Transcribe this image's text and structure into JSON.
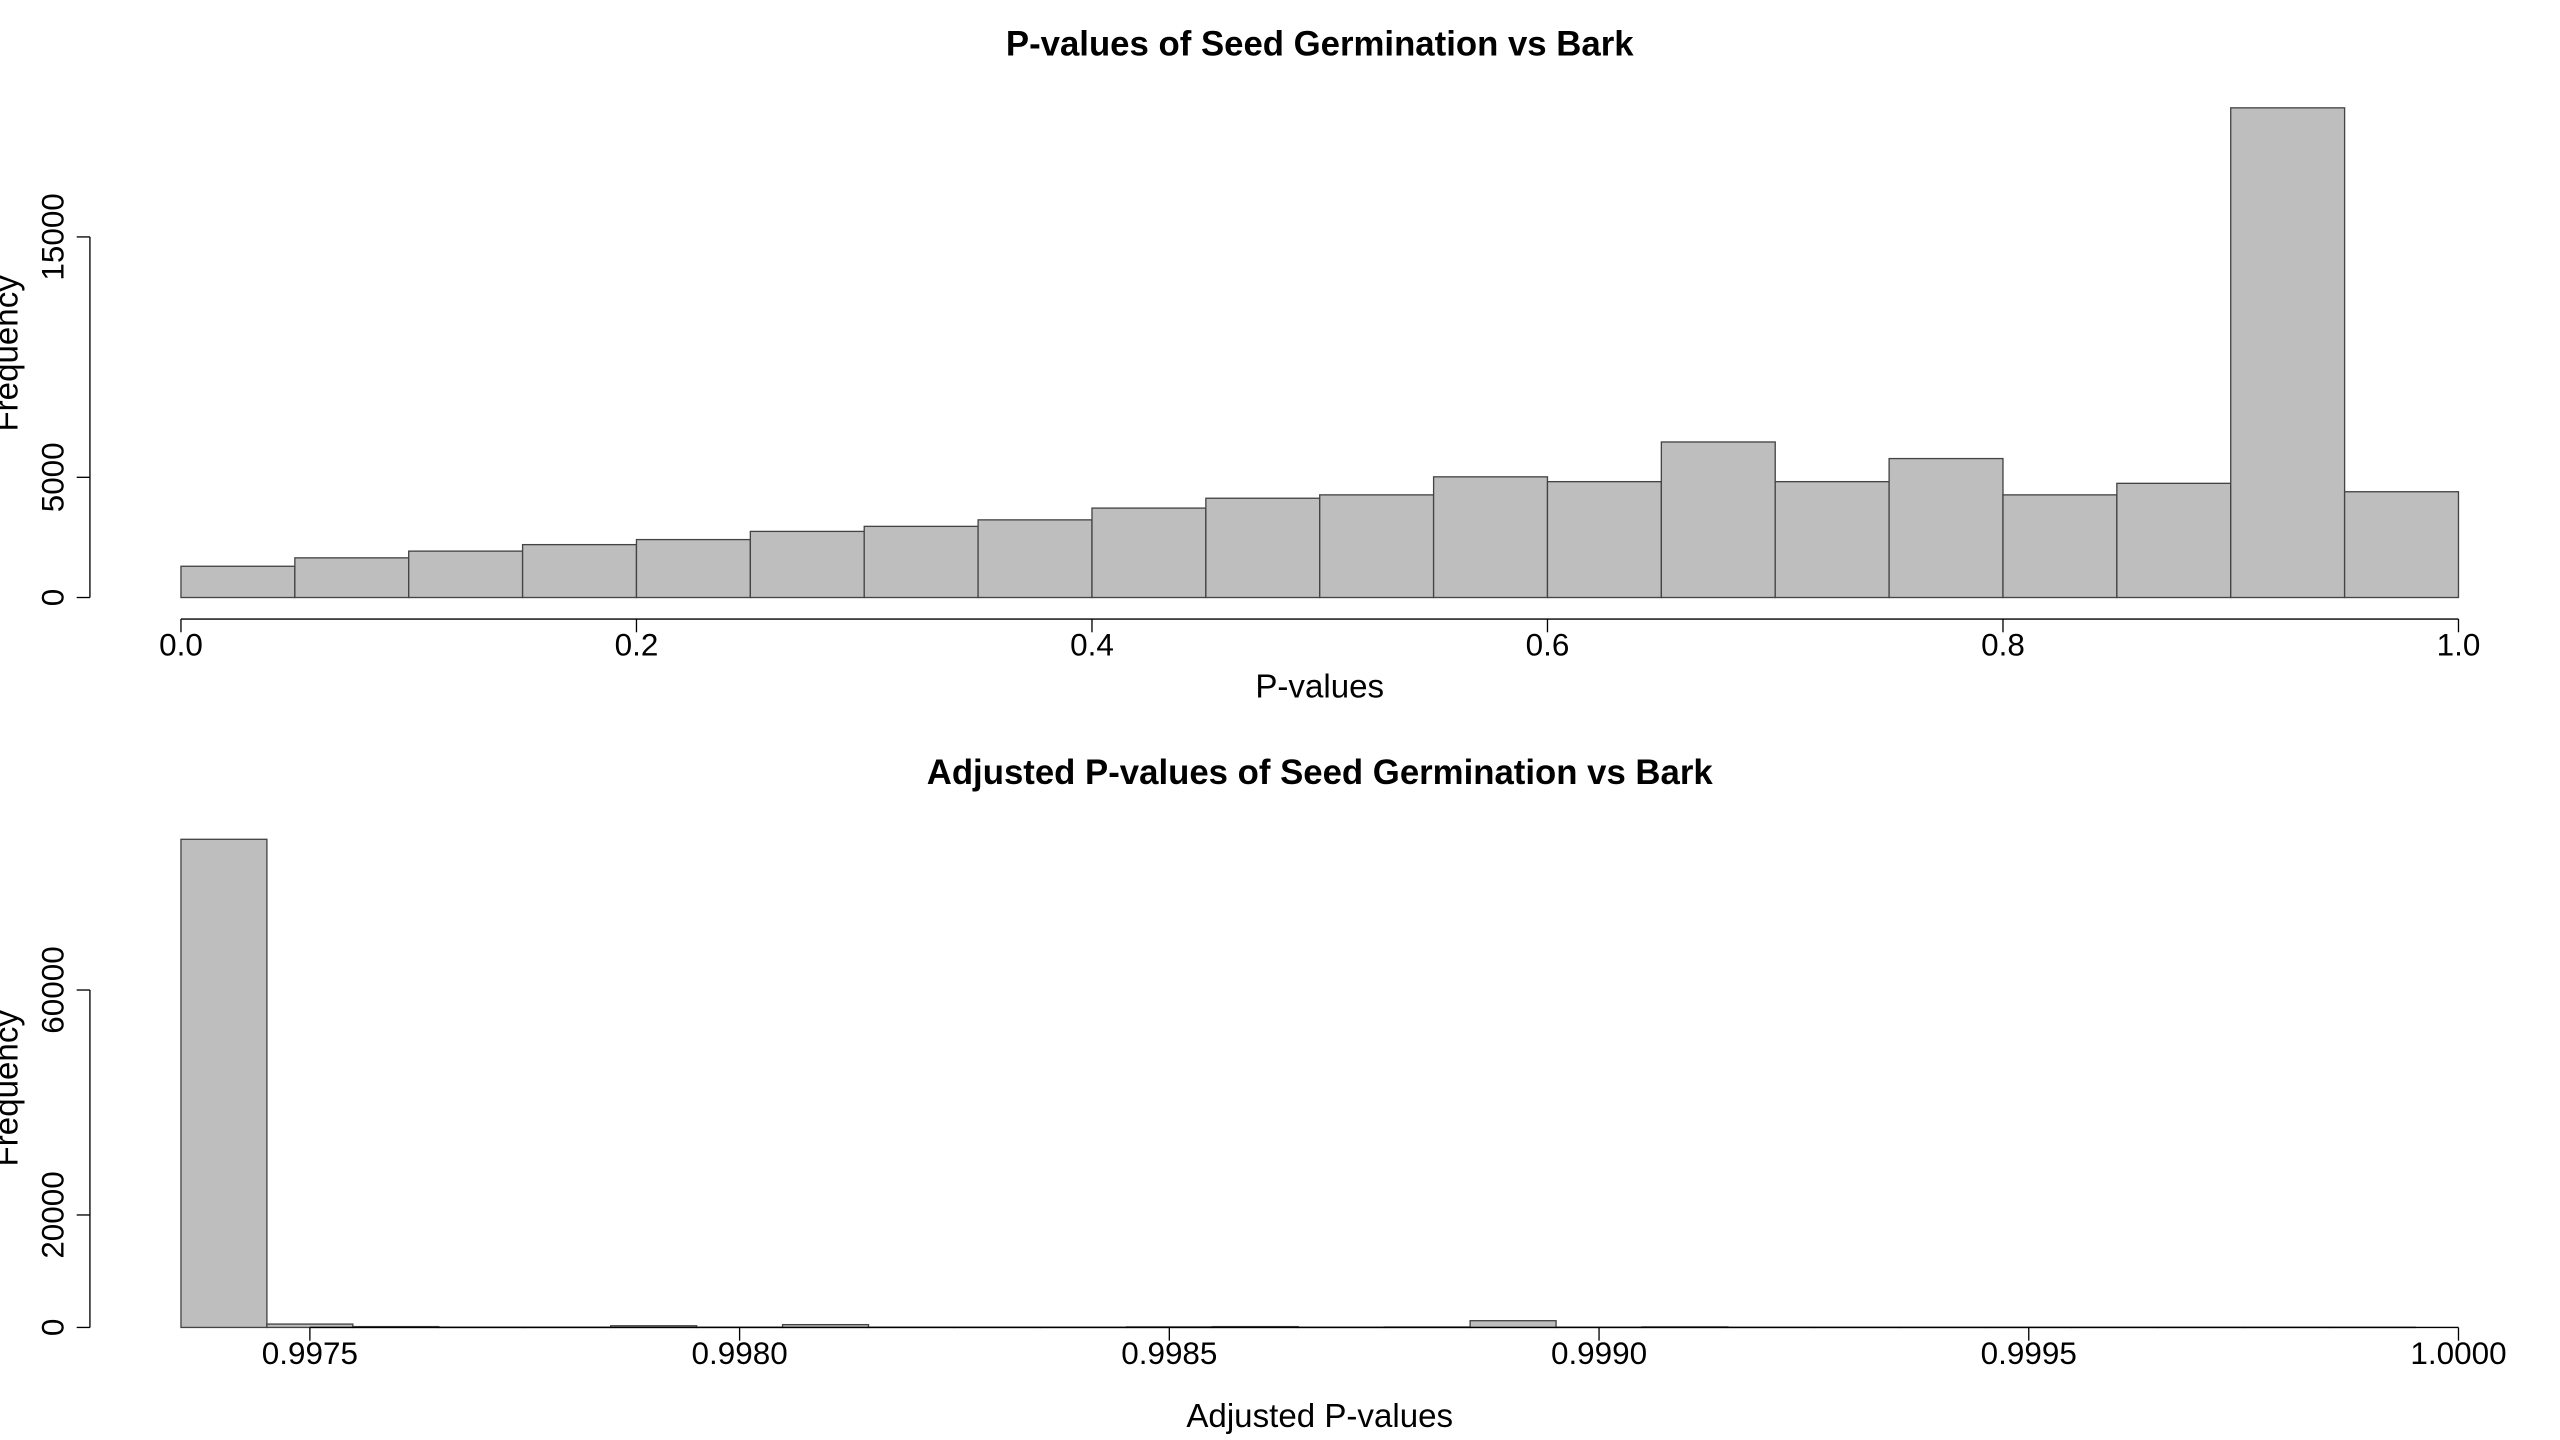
{
  "chart_data": [
    {
      "type": "histogram",
      "title": "P-values of Seed Germination vs Bark",
      "x_label": "P-values",
      "y_label": "Frequency",
      "bins": [
        0,
        0.05,
        0.1,
        0.15,
        0.2,
        0.25,
        0.3,
        0.35,
        0.4,
        0.45,
        0.5,
        0.55,
        0.6,
        0.65,
        0.7,
        0.75,
        0.8,
        0.85,
        0.9,
        0.95,
        1
      ],
      "values": [
        1300,
        1650,
        1930,
        2200,
        2410,
        2750,
        2960,
        3230,
        3720,
        4130,
        4270,
        5020,
        4820,
        6470,
        4820,
        5780,
        4270,
        4750,
        20370,
        4400
      ],
      "color": "#bebebe",
      "xlim": [
        0,
        1
      ],
      "ylim": [
        0,
        21000
      ],
      "xticks": [
        {
          "value": 0,
          "label": "0.0"
        },
        0.2,
        0.4,
        0.6,
        0.8,
        {
          "value": 1,
          "label": "1.0"
        }
      ],
      "yticks": [
        0,
        5000,
        15000
      ]
    },
    {
      "type": "histogram",
      "title": "Adjusted P-values of Seed Germination vs Bark",
      "x_label": "Adjusted P-values",
      "y_label": "Frequency",
      "bins": [
        0.99735,
        0.99745,
        0.99755,
        0.99765,
        0.99775,
        0.99785,
        0.99795,
        0.99805,
        0.99815,
        0.99825,
        0.99835,
        0.99845,
        0.99855,
        0.99865,
        0.99875,
        0.99885,
        0.99895,
        0.99905,
        0.99915,
        0.99925,
        0.99935,
        0.99945,
        0.99955,
        0.99965,
        0.99975,
        0.99985,
        0.99995
      ],
      "values": [
        86800,
        600,
        150,
        50,
        50,
        300,
        50,
        500,
        50,
        50,
        50,
        100,
        150,
        50,
        80,
        1200,
        50,
        100,
        30,
        30,
        30,
        30,
        30,
        30,
        30,
        30
      ],
      "color": "#bebebe",
      "xlim": [
        0.99735,
        1
      ],
      "ylim": [
        0,
        88000
      ],
      "xticks": [
        0.9975,
        {
          "value": 0.998,
          "label": "0.9980"
        },
        0.9985,
        {
          "value": 0.999,
          "label": "0.9990"
        },
        0.9995,
        {
          "value": 1,
          "label": "1.0000"
        }
      ],
      "yticks": [
        0,
        20000,
        60000
      ]
    }
  ]
}
